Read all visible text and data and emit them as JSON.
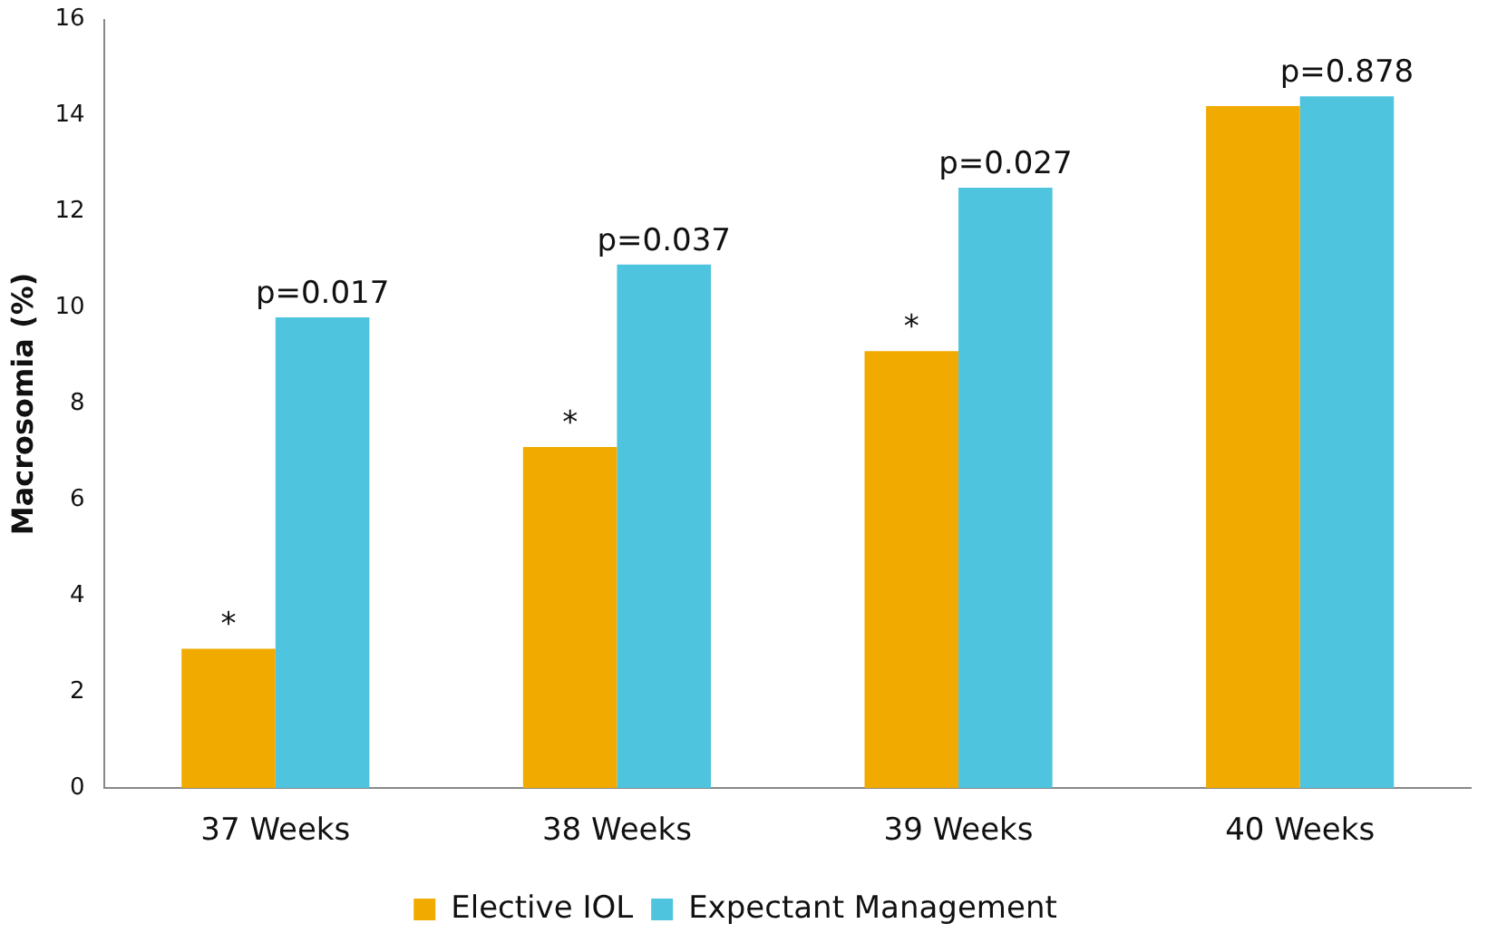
{
  "chart_data": {
    "type": "bar",
    "ylabel": "Macrosomia (%)",
    "categories": [
      "37 Weeks",
      "38 Weeks",
      "39 Weeks",
      "40 Weeks"
    ],
    "series": [
      {
        "name": "Elective IOL",
        "color": "#f0aa00",
        "values": [
          2.9,
          7.1,
          9.1,
          14.2
        ]
      },
      {
        "name": "Expectant Management",
        "color": "#4ec4de",
        "values": [
          9.8,
          10.9,
          12.5,
          14.4
        ]
      }
    ],
    "ylim": [
      0,
      16
    ],
    "yticks": [
      0,
      2,
      4,
      6,
      8,
      10,
      12,
      14,
      16
    ],
    "grid": false,
    "legend": "bottom",
    "annotations": [
      {
        "text": "p=0.017",
        "x": "37 Weeks",
        "y": 9.8
      },
      {
        "text": "p=0.037",
        "x": "38 Weeks",
        "y": 10.9
      },
      {
        "text": "p=0.027",
        "x": "39 Weeks",
        "y": 12.5
      },
      {
        "text": "p=0.878",
        "x": "40 Weeks",
        "y": 14.4
      },
      {
        "text": "*",
        "x": "37 Weeks",
        "y": 2.9
      },
      {
        "text": "*",
        "x": "38 Weeks",
        "y": 7.1
      },
      {
        "text": "*",
        "x": "39 Weeks",
        "y": 9.1
      }
    ]
  }
}
